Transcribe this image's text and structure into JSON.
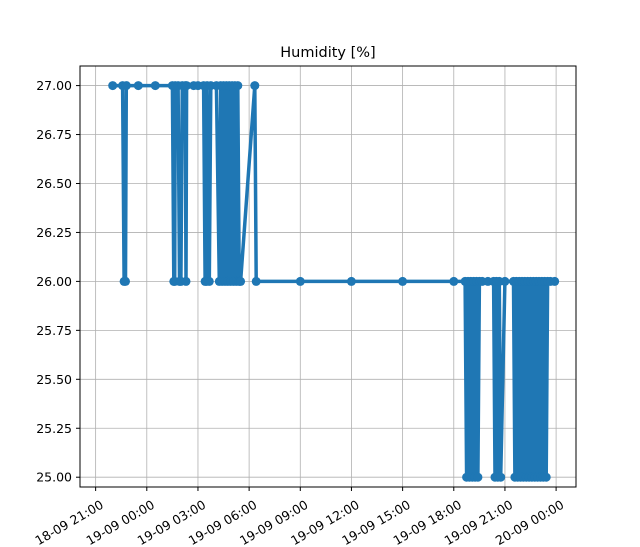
{
  "chart_data": {
    "type": "line",
    "title": "Humidity [%]",
    "xlabel": "",
    "ylabel": "",
    "grid": true,
    "legend": "none",
    "marker": "circle",
    "line_color": "#1f77b4",
    "ylim": [
      24.95,
      27.1
    ],
    "xlim": [
      "18-09 20:05",
      "20-09 01:10"
    ],
    "x_ticks": [
      "18-09 21:00",
      "19-09 00:00",
      "19-09 03:00",
      "19-09 06:00",
      "19-09 09:00",
      "19-09 12:00",
      "19-09 15:00",
      "19-09 18:00",
      "19-09 21:00",
      "20-09 00:00"
    ],
    "y_ticks": [
      "25.00",
      "25.25",
      "25.50",
      "25.75",
      "26.00",
      "26.25",
      "26.50",
      "26.75",
      "27.00"
    ],
    "series": [
      {
        "x": [
          "18-09 22:00",
          "18-09 22:35",
          "18-09 22:40",
          "18-09 22:45",
          "18-09 22:48",
          "18-09 23:30",
          "19-09 00:30",
          "19-09 01:30",
          "19-09 01:35",
          "19-09 01:38",
          "19-09 01:40",
          "19-09 01:50",
          "19-09 01:55",
          "19-09 02:00",
          "19-09 02:05",
          "19-09 02:15",
          "19-09 02:18",
          "19-09 02:20",
          "19-09 02:45",
          "19-09 03:00",
          "19-09 03:20",
          "19-09 03:25",
          "19-09 03:30",
          "19-09 03:32",
          "19-09 03:40",
          "19-09 03:45",
          "19-09 04:05",
          "19-09 04:15",
          "19-09 04:20",
          "19-09 04:25",
          "19-09 04:30",
          "19-09 04:35",
          "19-09 04:40",
          "19-09 04:45",
          "19-09 04:50",
          "19-09 04:55",
          "19-09 05:00",
          "19-09 05:05",
          "19-09 05:10",
          "19-09 05:15",
          "19-09 05:20",
          "19-09 05:25",
          "19-09 05:30",
          "19-09 06:20",
          "19-09 06:25",
          "19-09 09:00",
          "19-09 12:00",
          "19-09 15:00",
          "19-09 18:00",
          "19-09 18:40",
          "19-09 18:45",
          "19-09 18:50",
          "19-09 18:55",
          "19-09 19:00",
          "19-09 19:05",
          "19-09 19:10",
          "19-09 19:15",
          "19-09 19:20",
          "19-09 19:25",
          "19-09 19:30",
          "19-09 19:40",
          "19-09 20:00",
          "19-09 20:20",
          "19-09 20:25",
          "19-09 20:30",
          "19-09 20:35",
          "19-09 20:40",
          "19-09 20:45",
          "19-09 21:00",
          "19-09 21:30",
          "19-09 21:35",
          "19-09 21:40",
          "19-09 21:45",
          "19-09 21:50",
          "19-09 21:55",
          "19-09 22:00",
          "19-09 22:05",
          "19-09 22:10",
          "19-09 22:15",
          "19-09 22:20",
          "19-09 22:25",
          "19-09 22:30",
          "19-09 22:35",
          "19-09 22:40",
          "19-09 22:45",
          "19-09 22:50",
          "19-09 22:55",
          "19-09 23:00",
          "19-09 23:05",
          "19-09 23:10",
          "19-09 23:15",
          "19-09 23:20",
          "19-09 23:25",
          "19-09 23:30",
          "19-09 23:40",
          "19-09 23:55"
        ],
        "y": [
          27,
          27,
          26,
          26,
          27,
          27,
          27,
          27,
          26,
          26,
          27,
          27,
          26,
          26,
          27,
          27,
          26,
          27,
          27,
          27,
          27,
          26,
          26,
          27,
          26,
          27,
          27,
          26,
          27,
          26,
          27,
          26,
          27,
          26,
          27,
          26,
          27,
          26,
          27,
          26,
          27,
          26,
          26,
          27,
          26,
          26,
          26,
          26,
          26,
          26,
          25,
          26,
          25,
          26,
          25,
          26,
          25,
          26,
          25,
          26,
          26,
          26,
          26,
          25,
          26,
          25,
          26,
          25,
          26,
          26,
          25,
          26,
          25,
          26,
          25,
          26,
          25,
          26,
          25,
          26,
          25,
          26,
          25,
          26,
          25,
          26,
          25,
          26,
          25,
          26,
          25,
          26,
          25,
          26,
          26,
          26
        ]
      }
    ]
  }
}
